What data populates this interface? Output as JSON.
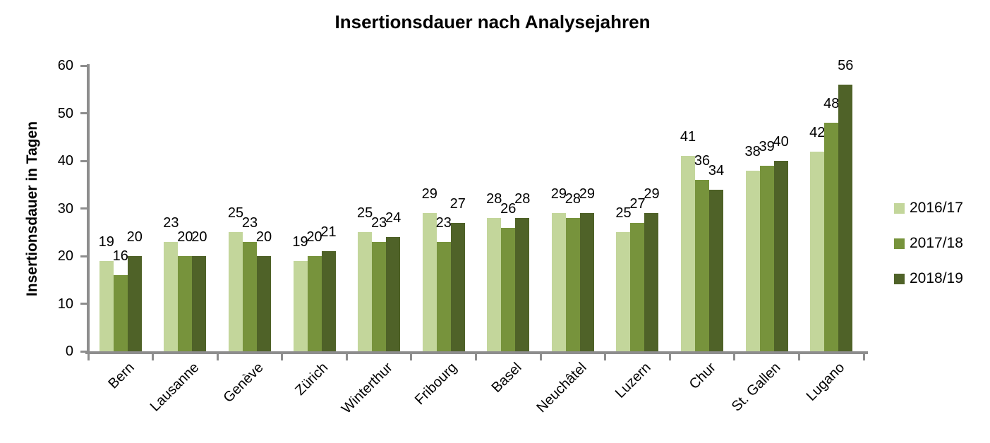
{
  "chart_data": {
    "type": "bar",
    "title": "Insertionsdauer nach Analysejahren",
    "ylabel": "Insertionsdauer in Tagen",
    "xlabel": "",
    "categories": [
      "Bern",
      "Lausanne",
      "Genève",
      "Zürich",
      "Winterthur",
      "Fribourg",
      "Basel",
      "Neuchâtel",
      "Luzern",
      "Chur",
      "St. Gallen",
      "Lugano"
    ],
    "series": [
      {
        "name": "2016/17",
        "color": "#c3d69b",
        "values": [
          19,
          23,
          25,
          19,
          25,
          29,
          28,
          29,
          25,
          41,
          38,
          42
        ]
      },
      {
        "name": "2017/18",
        "color": "#77933c",
        "values": [
          16,
          20,
          23,
          20,
          23,
          23,
          26,
          28,
          27,
          36,
          39,
          48
        ]
      },
      {
        "name": "2018/19",
        "color": "#4f6228",
        "values": [
          20,
          20,
          20,
          21,
          24,
          27,
          28,
          29,
          29,
          34,
          40,
          56
        ]
      }
    ],
    "ylim": [
      0,
      60
    ],
    "yticks": [
      0,
      10,
      20,
      30,
      40,
      50,
      60
    ],
    "grid": false,
    "data_labels": true,
    "legend_position": "right",
    "axis_color": "#8d8d8d",
    "text_color": "#000000"
  }
}
